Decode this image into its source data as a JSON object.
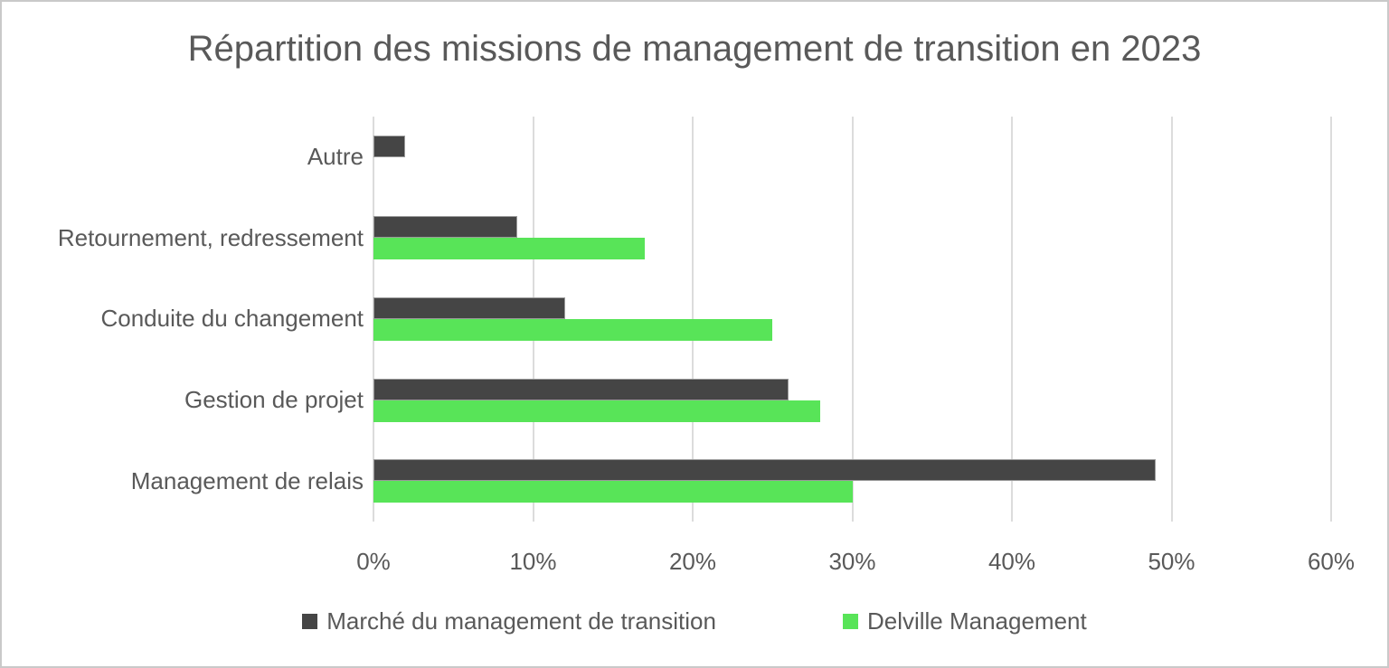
{
  "chart_data": {
    "type": "bar",
    "orientation": "horizontal",
    "title": "Répartition des missions de management de transition en 2023",
    "categories": [
      "Autre",
      "Retournement, redressement",
      "Conduite du changement",
      "Gestion de projet",
      "Management de relais"
    ],
    "series": [
      {
        "name": "Marché du management de transition",
        "color": "#454545",
        "values": [
          2,
          9,
          12,
          26,
          49
        ]
      },
      {
        "name": "Delville Management",
        "color": "#58E458",
        "values": [
          0,
          17,
          25,
          28,
          30
        ]
      }
    ],
    "x_ticks": [
      "0%",
      "10%",
      "20%",
      "30%",
      "40%",
      "50%",
      "60%"
    ],
    "xlim": [
      0,
      60
    ],
    "grid": "vertical-only",
    "legend_position": "bottom",
    "value_unit": "%"
  }
}
